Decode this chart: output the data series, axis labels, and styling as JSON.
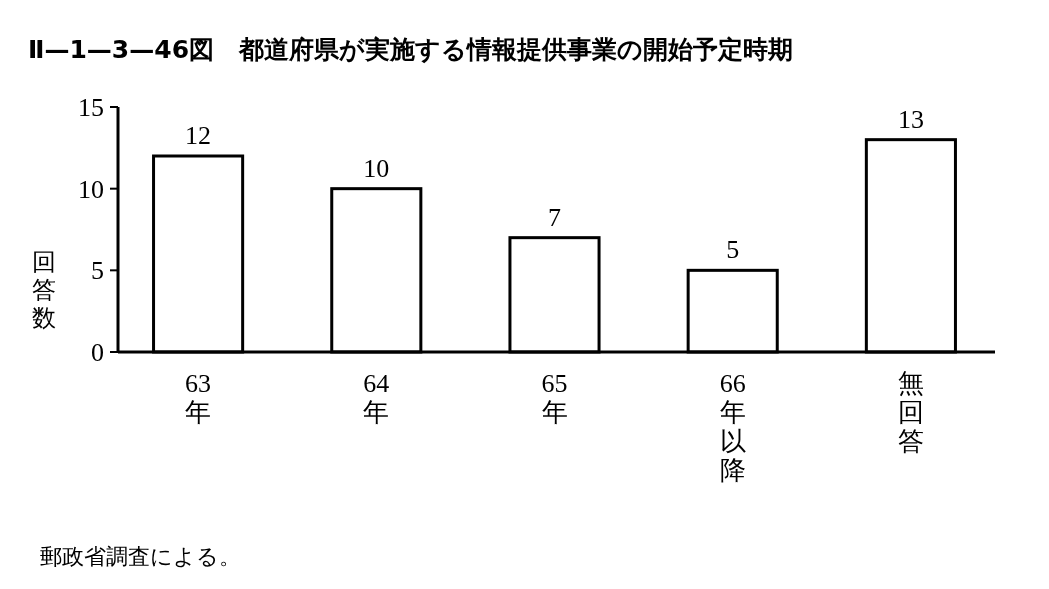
{
  "chart_data": {
    "type": "bar",
    "title": "Ⅱ—1—3—46図　都道府県が実施する情報提供事業の開始予定時期",
    "ylabel": "回答数",
    "categories": [
      "63年",
      "64年",
      "65年",
      "66年以降",
      "無回答"
    ],
    "values": [
      12,
      10,
      7,
      5,
      13
    ],
    "color": "#ffffff",
    "ylim": [
      0,
      15
    ],
    "yticks": [
      0,
      5,
      10,
      15
    ],
    "data_labels": true,
    "annotations": [
      "郵政省調査による。"
    ]
  }
}
